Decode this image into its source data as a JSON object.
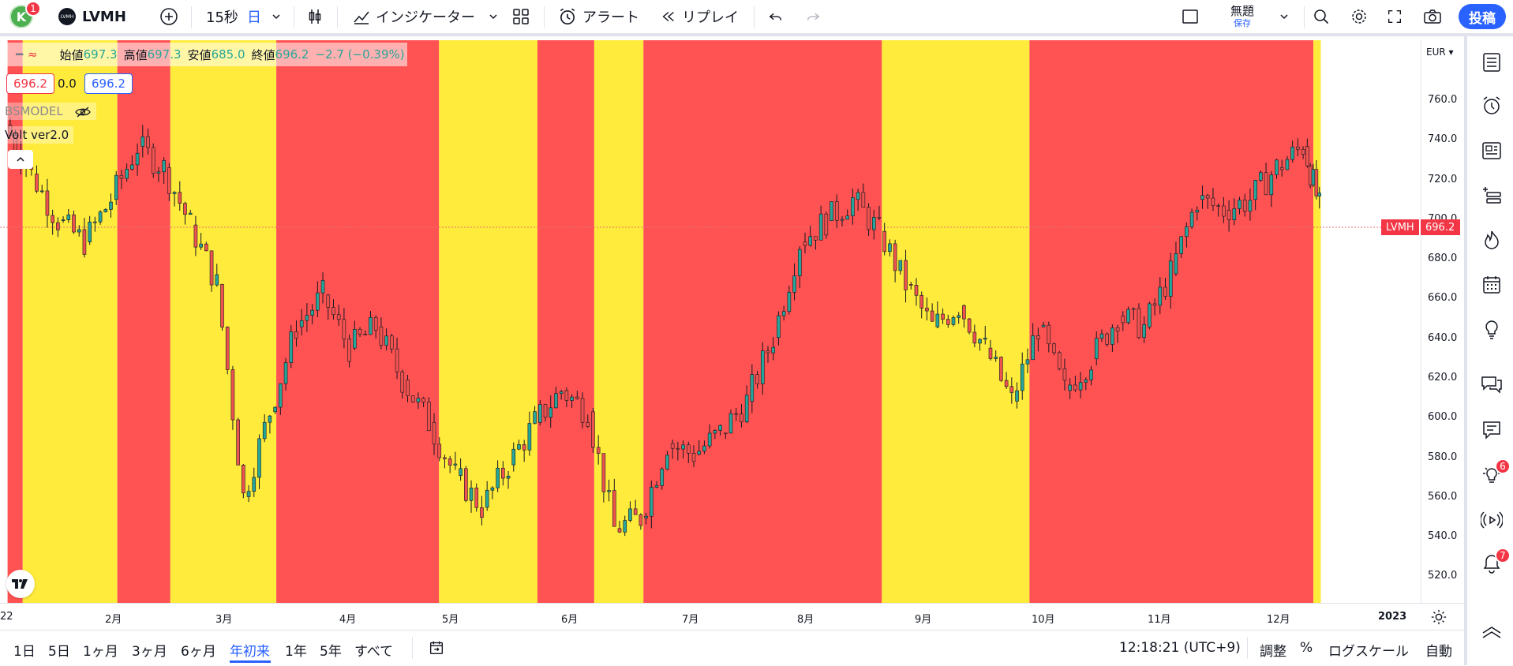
{
  "header": {
    "avatar_letter": "K",
    "avatar_badge": "1",
    "symbol_logo": "LVMH",
    "symbol": "LVMH",
    "interval": "15秒",
    "period": "日",
    "indicators_label": "インジケーター",
    "alert_label": "アラート",
    "replay_label": "リプレイ",
    "layout_name": "無題",
    "save_label": "保存",
    "post_label": "投稿"
  },
  "legend": {
    "open_label": "始値",
    "open": "697.3",
    "high_label": "高値",
    "high": "697.3",
    "low_label": "安値",
    "low": "685.0",
    "close_label": "終値",
    "close": "696.2",
    "change": "−2.7 (−0.39%)",
    "bid": "696.2",
    "spread": "0.0",
    "ask": "696.2",
    "study1": "BSMODEL",
    "study2": "Volt ver2.0"
  },
  "price_axis": {
    "currency": "EUR",
    "ticks": [
      "760.0",
      "740.0",
      "720.0",
      "700.0",
      "680.0",
      "660.0",
      "640.0",
      "620.0",
      "600.0",
      "580.0",
      "560.0",
      "540.0",
      "520.0"
    ],
    "last_symbol": "LVMH",
    "last_price": "696.2"
  },
  "time_axis": {
    "ticks": [
      "22",
      "2月",
      "3月",
      "4月",
      "5月",
      "6月",
      "7月",
      "8月",
      "9月",
      "10月",
      "11月",
      "12月",
      "2023"
    ]
  },
  "bottom": {
    "ranges": [
      "1日",
      "5日",
      "1ヶ月",
      "3ヶ月",
      "6ヶ月",
      "年初来",
      "1年",
      "5年",
      "すべて"
    ],
    "active_range": "年初来",
    "clock": "12:18:21 (UTC+9)",
    "adjust": "調整",
    "percent": "%",
    "log": "ログスケール",
    "auto": "自動"
  },
  "right_badges": {
    "ideas": "6",
    "alerts": "7"
  },
  "colors": {
    "red_zone": "#ff5252",
    "yellow_zone": "#ffeb3b",
    "up": "#26a69a",
    "down": "#ef5350",
    "accent": "#2962ff"
  },
  "chart_data": {
    "type": "candlestick",
    "symbol": "LVMH",
    "currency": "EUR",
    "ylim": [
      510,
      775
    ],
    "y_ticks": [
      520,
      540,
      560,
      580,
      600,
      620,
      640,
      660,
      680,
      700,
      720,
      740,
      760
    ],
    "x_tick_labels": [
      "22",
      "2月",
      "3月",
      "4月",
      "5月",
      "6月",
      "7月",
      "8月",
      "9月",
      "10月",
      "11月",
      "12月",
      "2023"
    ],
    "last_close": 696.2,
    "ohlc_last": {
      "open": 697.3,
      "high": 697.3,
      "low": 685.0,
      "close": 696.2,
      "change": -2.7,
      "change_pct": -0.39
    },
    "zones": [
      {
        "color": "red",
        "from": "2022-01-03",
        "to": "2022-01-07"
      },
      {
        "color": "yellow",
        "from": "2022-01-07",
        "to": "2022-02-01"
      },
      {
        "color": "red",
        "from": "2022-02-01",
        "to": "2022-02-15"
      },
      {
        "color": "yellow",
        "from": "2022-02-15",
        "to": "2022-03-15"
      },
      {
        "color": "red",
        "from": "2022-03-15",
        "to": "2022-04-27"
      },
      {
        "color": "yellow",
        "from": "2022-04-27",
        "to": "2022-05-23"
      },
      {
        "color": "red",
        "from": "2022-05-23",
        "to": "2022-06-07"
      },
      {
        "color": "yellow",
        "from": "2022-06-07",
        "to": "2022-06-20"
      },
      {
        "color": "red",
        "from": "2022-06-20",
        "to": "2022-08-22"
      },
      {
        "color": "yellow",
        "from": "2022-08-22",
        "to": "2022-09-30"
      },
      {
        "color": "red",
        "from": "2022-09-30",
        "to": "2022-12-14"
      },
      {
        "color": "yellow",
        "from": "2022-12-14",
        "to": "2022-12-16"
      }
    ],
    "approx_closes": [
      {
        "date": "2022-01-03",
        "close": 735
      },
      {
        "date": "2022-01-10",
        "close": 712
      },
      {
        "date": "2022-01-17",
        "close": 690
      },
      {
        "date": "2022-01-24",
        "close": 680
      },
      {
        "date": "2022-01-31",
        "close": 700
      },
      {
        "date": "2022-02-07",
        "close": 725
      },
      {
        "date": "2022-02-14",
        "close": 715
      },
      {
        "date": "2022-02-21",
        "close": 688
      },
      {
        "date": "2022-02-28",
        "close": 660
      },
      {
        "date": "2022-03-07",
        "close": 560
      },
      {
        "date": "2022-03-14",
        "close": 600
      },
      {
        "date": "2022-03-21",
        "close": 640
      },
      {
        "date": "2022-03-28",
        "close": 655
      },
      {
        "date": "2022-04-04",
        "close": 630
      },
      {
        "date": "2022-04-11",
        "close": 640
      },
      {
        "date": "2022-04-18",
        "close": 615
      },
      {
        "date": "2022-04-25",
        "close": 595
      },
      {
        "date": "2022-05-02",
        "close": 570
      },
      {
        "date": "2022-05-09",
        "close": 555
      },
      {
        "date": "2022-05-16",
        "close": 575
      },
      {
        "date": "2022-05-23",
        "close": 595
      },
      {
        "date": "2022-05-30",
        "close": 610
      },
      {
        "date": "2022-06-06",
        "close": 600
      },
      {
        "date": "2022-06-13",
        "close": 545
      },
      {
        "date": "2022-06-20",
        "close": 550
      },
      {
        "date": "2022-06-27",
        "close": 585
      },
      {
        "date": "2022-07-04",
        "close": 580
      },
      {
        "date": "2022-07-11",
        "close": 590
      },
      {
        "date": "2022-07-18",
        "close": 605
      },
      {
        "date": "2022-07-25",
        "close": 635
      },
      {
        "date": "2022-08-01",
        "close": 680
      },
      {
        "date": "2022-08-08",
        "close": 690
      },
      {
        "date": "2022-08-15",
        "close": 700
      },
      {
        "date": "2022-08-22",
        "close": 685
      },
      {
        "date": "2022-08-29",
        "close": 660
      },
      {
        "date": "2022-09-05",
        "close": 640
      },
      {
        "date": "2022-09-12",
        "close": 650
      },
      {
        "date": "2022-09-19",
        "close": 630
      },
      {
        "date": "2022-09-26",
        "close": 605
      },
      {
        "date": "2022-10-03",
        "close": 640
      },
      {
        "date": "2022-10-10",
        "close": 610
      },
      {
        "date": "2022-10-17",
        "close": 625
      },
      {
        "date": "2022-10-24",
        "close": 645
      },
      {
        "date": "2022-10-31",
        "close": 640
      },
      {
        "date": "2022-11-07",
        "close": 665
      },
      {
        "date": "2022-11-14",
        "close": 700
      },
      {
        "date": "2022-11-21",
        "close": 695
      },
      {
        "date": "2022-11-28",
        "close": 700
      },
      {
        "date": "2022-12-05",
        "close": 715
      },
      {
        "date": "2022-12-12",
        "close": 725
      },
      {
        "date": "2022-12-16",
        "close": 696.2
      }
    ]
  }
}
